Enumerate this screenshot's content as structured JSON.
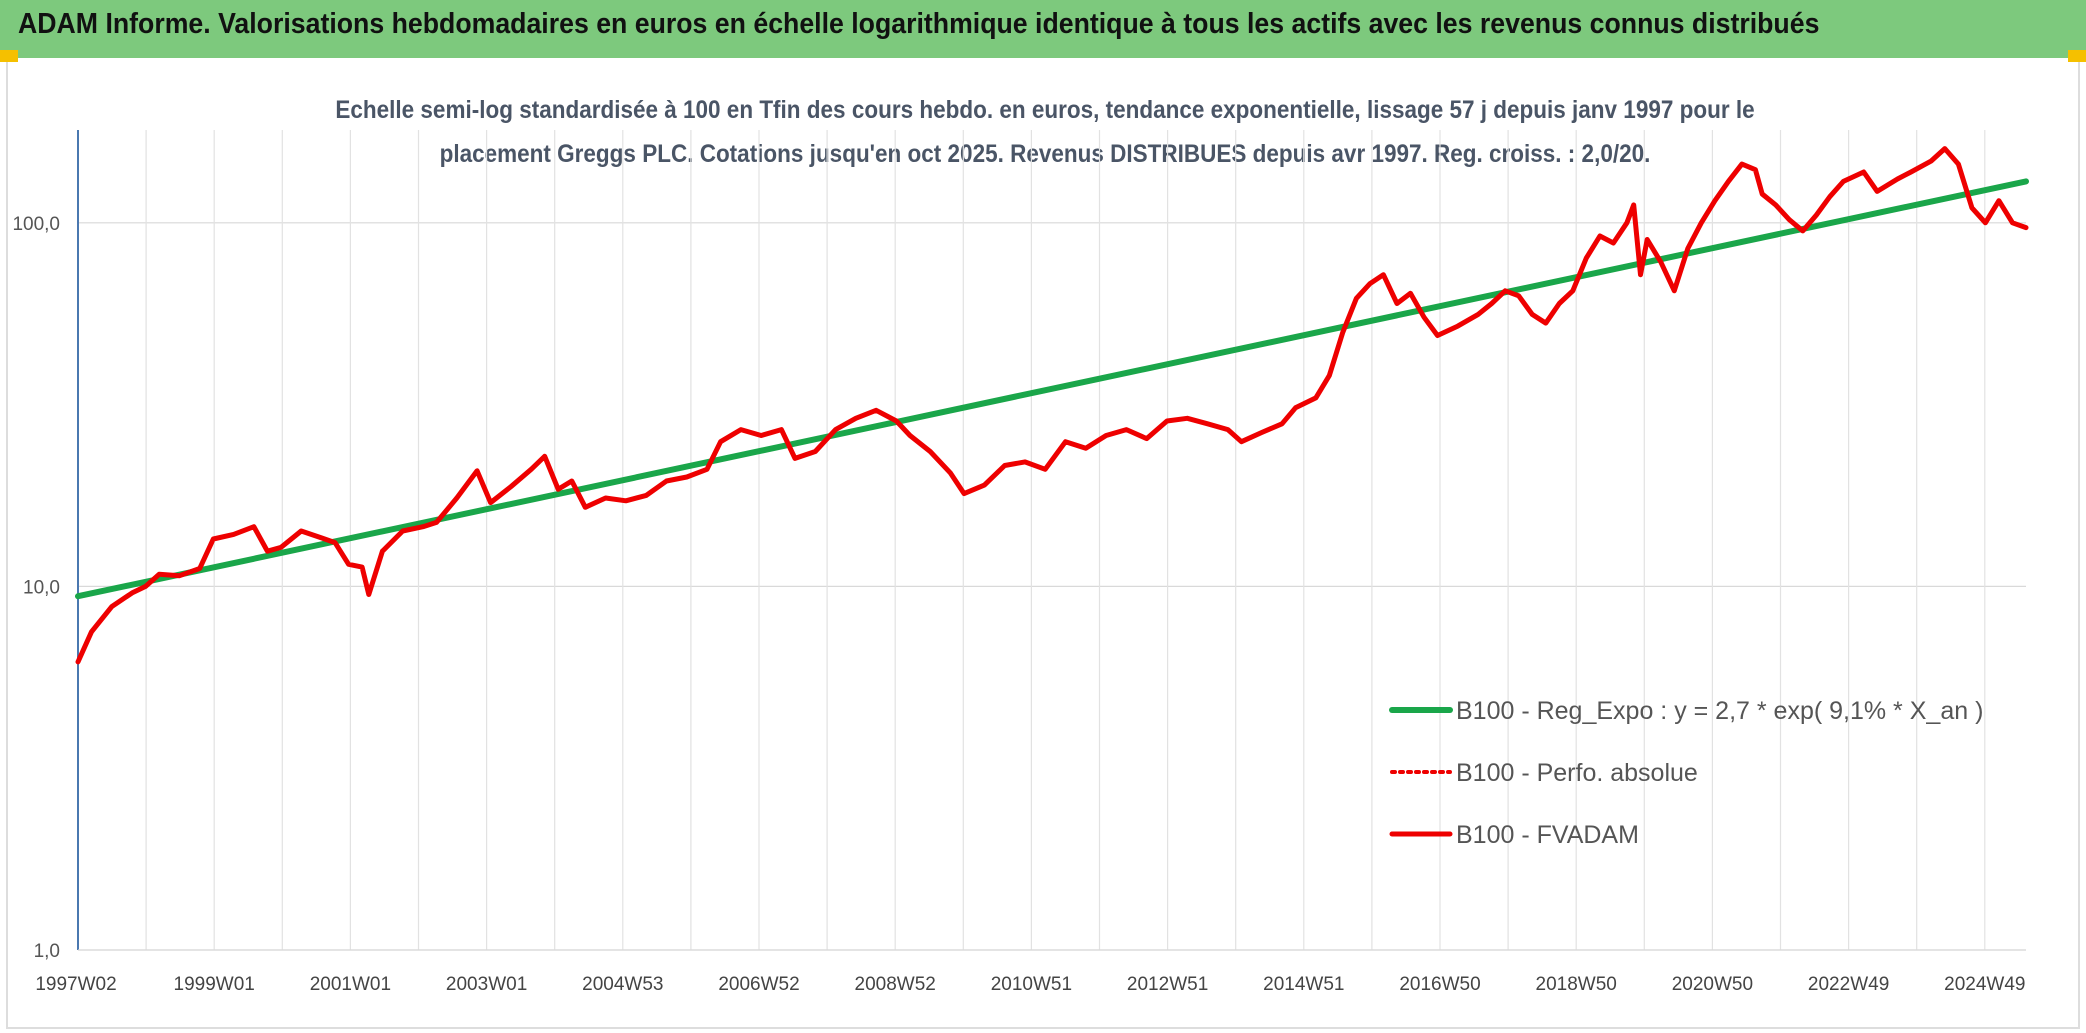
{
  "header": {
    "title": "ADAM Informe. Valorisations hebdomadaires en euros en échelle logarithmique identique à tous les actifs avec les revenus connus distribués"
  },
  "colors": {
    "header_bg": "#7dc97d",
    "trend": "#1aa64a",
    "fvadam": "#ee0000",
    "perfo": "#ee0000",
    "corner": "#f5c000"
  },
  "chart_data": {
    "type": "line",
    "title": "Echelle semi-log standardisée à 100 en Tfin des cours hebdo. en euros, tendance exponentielle, lissage 57 j depuis janv 1997 pour le placement Greggs PLC. Cotations jusqu'en oct 2025. Revenus DISTRIBUES depuis avr 1997. Reg. croiss. : 2,0/20.",
    "xlabel": "",
    "ylabel": "",
    "y_scale": "log",
    "ylim": [
      1,
      180
    ],
    "y_ticks": [
      "1,0",
      "10,0",
      "100,0"
    ],
    "x_tick_labels": [
      "1997W02",
      "1999W01",
      "2001W01",
      "2003W01",
      "2004W53",
      "2006W52",
      "2008W52",
      "2010W51",
      "2012W51",
      "2014W51",
      "2016W50",
      "2018W50",
      "2020W50",
      "2022W49",
      "2024W49"
    ],
    "x_range": [
      1997.0,
      2025.8
    ],
    "grid": "vertical and horizontal",
    "legend_position": "right",
    "series": [
      {
        "name": "B100 - Reg_Expo : y = 2,7 * exp( 9,1% *  X_an )",
        "style": "solid-green",
        "points": [
          [
            1997.0,
            9.4
          ],
          [
            2025.8,
            130.0
          ]
        ]
      },
      {
        "name": "B100 - Perfo. absolue",
        "style": "dotted-red",
        "points": []
      },
      {
        "name": "B100 - FVADAM",
        "style": "solid-red",
        "points": [
          [
            1997.0,
            6.2
          ],
          [
            1997.2,
            7.5
          ],
          [
            1997.5,
            8.8
          ],
          [
            1997.8,
            9.6
          ],
          [
            1998.0,
            10.0
          ],
          [
            1998.2,
            10.8
          ],
          [
            1998.5,
            10.7
          ],
          [
            1998.8,
            11.2
          ],
          [
            1999.0,
            13.5
          ],
          [
            1999.3,
            13.9
          ],
          [
            1999.6,
            14.6
          ],
          [
            1999.8,
            12.5
          ],
          [
            2000.0,
            12.8
          ],
          [
            2000.3,
            14.2
          ],
          [
            2000.6,
            13.6
          ],
          [
            2000.8,
            13.2
          ],
          [
            2001.0,
            11.5
          ],
          [
            2001.2,
            11.3
          ],
          [
            2001.3,
            9.5
          ],
          [
            2001.5,
            12.5
          ],
          [
            2001.8,
            14.2
          ],
          [
            2002.1,
            14.6
          ],
          [
            2002.3,
            15.0
          ],
          [
            2002.6,
            17.5
          ],
          [
            2002.9,
            20.8
          ],
          [
            2003.1,
            17.0
          ],
          [
            2003.4,
            18.8
          ],
          [
            2003.7,
            21.0
          ],
          [
            2003.9,
            22.8
          ],
          [
            2004.1,
            18.5
          ],
          [
            2004.3,
            19.5
          ],
          [
            2004.5,
            16.5
          ],
          [
            2004.8,
            17.5
          ],
          [
            2005.1,
            17.2
          ],
          [
            2005.4,
            17.8
          ],
          [
            2005.7,
            19.5
          ],
          [
            2006.0,
            20.0
          ],
          [
            2006.3,
            21.0
          ],
          [
            2006.5,
            25.0
          ],
          [
            2006.8,
            27.0
          ],
          [
            2007.1,
            26.0
          ],
          [
            2007.4,
            27.0
          ],
          [
            2007.6,
            22.5
          ],
          [
            2007.9,
            23.5
          ],
          [
            2008.2,
            27.0
          ],
          [
            2008.5,
            29.0
          ],
          [
            2008.8,
            30.5
          ],
          [
            2009.1,
            28.5
          ],
          [
            2009.3,
            26.0
          ],
          [
            2009.6,
            23.5
          ],
          [
            2009.9,
            20.5
          ],
          [
            2010.1,
            18.0
          ],
          [
            2010.4,
            19.0
          ],
          [
            2010.7,
            21.5
          ],
          [
            2011.0,
            22.0
          ],
          [
            2011.3,
            21.0
          ],
          [
            2011.6,
            25.0
          ],
          [
            2011.9,
            24.0
          ],
          [
            2012.2,
            26.0
          ],
          [
            2012.5,
            27.0
          ],
          [
            2012.8,
            25.5
          ],
          [
            2013.1,
            28.5
          ],
          [
            2013.4,
            29.0
          ],
          [
            2013.7,
            28.0
          ],
          [
            2014.0,
            27.0
          ],
          [
            2014.2,
            25.0
          ],
          [
            2014.5,
            26.5
          ],
          [
            2014.8,
            28.0
          ],
          [
            2015.0,
            31.0
          ],
          [
            2015.3,
            33.0
          ],
          [
            2015.5,
            38.0
          ],
          [
            2015.7,
            50.0
          ],
          [
            2015.9,
            62.0
          ],
          [
            2016.1,
            68.0
          ],
          [
            2016.3,
            72.0
          ],
          [
            2016.5,
            60.0
          ],
          [
            2016.7,
            64.0
          ],
          [
            2016.9,
            55.0
          ],
          [
            2017.1,
            49.0
          ],
          [
            2017.4,
            52.0
          ],
          [
            2017.7,
            56.0
          ],
          [
            2017.9,
            60.0
          ],
          [
            2018.1,
            65.0
          ],
          [
            2018.3,
            63.0
          ],
          [
            2018.5,
            56.0
          ],
          [
            2018.7,
            53.0
          ],
          [
            2018.9,
            60.0
          ],
          [
            2019.1,
            65.0
          ],
          [
            2019.3,
            80.0
          ],
          [
            2019.5,
            92.0
          ],
          [
            2019.7,
            88.0
          ],
          [
            2019.9,
            100.0
          ],
          [
            2020.0,
            112.0
          ],
          [
            2020.1,
            72.0
          ],
          [
            2020.2,
            90.0
          ],
          [
            2020.4,
            78.0
          ],
          [
            2020.6,
            65.0
          ],
          [
            2020.8,
            85.0
          ],
          [
            2021.0,
            100.0
          ],
          [
            2021.2,
            115.0
          ],
          [
            2021.4,
            130.0
          ],
          [
            2021.6,
            145.0
          ],
          [
            2021.8,
            140.0
          ],
          [
            2021.9,
            120.0
          ],
          [
            2022.1,
            112.0
          ],
          [
            2022.3,
            102.0
          ],
          [
            2022.5,
            95.0
          ],
          [
            2022.7,
            105.0
          ],
          [
            2022.9,
            118.0
          ],
          [
            2023.1,
            130.0
          ],
          [
            2023.4,
            138.0
          ],
          [
            2023.6,
            122.0
          ],
          [
            2023.9,
            132.0
          ],
          [
            2024.1,
            138.0
          ],
          [
            2024.4,
            148.0
          ],
          [
            2024.6,
            160.0
          ],
          [
            2024.8,
            145.0
          ],
          [
            2025.0,
            110.0
          ],
          [
            2025.2,
            100.0
          ],
          [
            2025.4,
            115.0
          ],
          [
            2025.6,
            100.0
          ],
          [
            2025.8,
            97.0
          ]
        ]
      }
    ]
  }
}
